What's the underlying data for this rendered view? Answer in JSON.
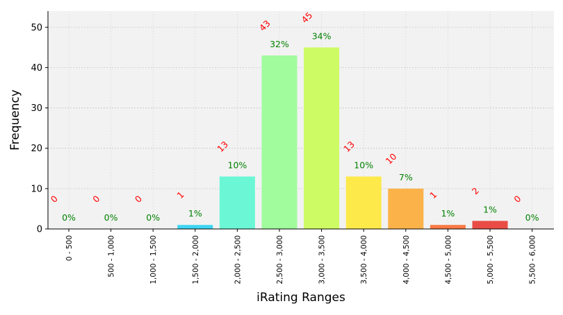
{
  "chart_data": {
    "type": "bar",
    "xlabel": "iRating Ranges",
    "ylabel": "Frequency",
    "categories": [
      "0 - 500",
      "500 - 1,000",
      "1,000 - 1,500",
      "1,500 - 2,000",
      "2,000 - 2,500",
      "2,500 - 3,000",
      "3,000 - 3,500",
      "3,500 - 4,000",
      "4,000 - 4,500",
      "4,500 - 5,000",
      "5,000 - 5,500",
      "5,500 - 6,000"
    ],
    "values": [
      0,
      0,
      0,
      1,
      13,
      43,
      45,
      13,
      10,
      1,
      2,
      0
    ],
    "percent_labels": [
      "0%",
      "0%",
      "0%",
      "1%",
      "10%",
      "32%",
      "34%",
      "10%",
      "7%",
      "1%",
      "1%",
      "0%"
    ],
    "count_labels": [
      "0",
      "0",
      "0",
      "1",
      "13",
      "43",
      "45",
      "13",
      "10",
      "1",
      "2",
      "0"
    ],
    "bar_colors": [
      "#3a3fd6",
      "#3a3fd6",
      "#2f8cf0",
      "#3fd6f2",
      "#6bf7d6",
      "#a0fc9c",
      "#cdfb63",
      "#fde94a",
      "#fbb249",
      "#f97a45",
      "#e84c45",
      "#b01f1f"
    ],
    "yticks": [
      0,
      10,
      20,
      30,
      40,
      50
    ],
    "ylim": [
      0,
      54
    ],
    "grid": true,
    "colors": {
      "plot_bg": "#f2f2f2",
      "count_label": "#ff0000",
      "percent_label": "#008000",
      "grid": "#c8c8c8"
    }
  }
}
